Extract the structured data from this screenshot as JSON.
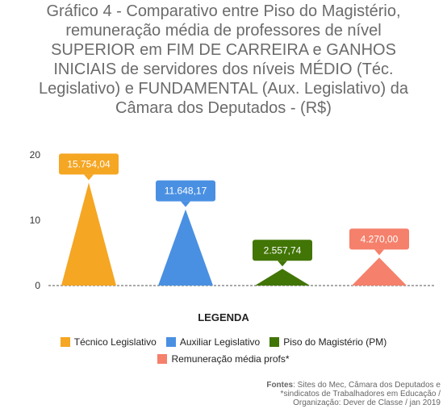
{
  "title_lines": [
    "Gráfico 4 - Comparativo entre Piso do Magistério,",
    "remuneração média de professores de nível",
    "SUPERIOR em FIM DE CARREIRA e GANHOS",
    "INICIAIS de servidores dos níveis MÉDIO (Téc.",
    "Legislativo) e FUNDAMENTAL (Aux. Legislativo) da",
    "Câmara dos Deputados - (R$)"
  ],
  "legend": {
    "title": "LEGENDA",
    "items": [
      {
        "label": "Técnico Legislativo",
        "color": "#f5a623"
      },
      {
        "label": "Auxiliar Legislativo",
        "color": "#4a90e2"
      },
      {
        "label": "Piso do Magistério (PM)",
        "color": "#417505"
      },
      {
        "label": "Remuneração média profs*",
        "color": "#f5806b"
      }
    ]
  },
  "source": {
    "label": "Fontes",
    "text": ": Sites do Mec, Câmara dos Deputados e *sindicatos de Trabalhadores em Educação / Organização: Dever de Classe / jan 2019"
  },
  "chart_data": {
    "type": "bar",
    "categories": [
      "Técnico Legislativo",
      "Auxiliar Legislativo",
      "Piso do Magistério (PM)",
      "Remuneração média profs*"
    ],
    "values": [
      15754.04,
      11648.17,
      2557.74,
      4270.0
    ],
    "data_labels": [
      "15.754,04",
      "11.648,17",
      "2.557,74",
      "4.270,00"
    ],
    "colors": [
      "#f5a623",
      "#4a90e2",
      "#417505",
      "#f5806b"
    ],
    "yticks": [
      0,
      10,
      20
    ],
    "ylim": [
      0,
      20000
    ],
    "grid": false,
    "legend_position": "bottom"
  }
}
